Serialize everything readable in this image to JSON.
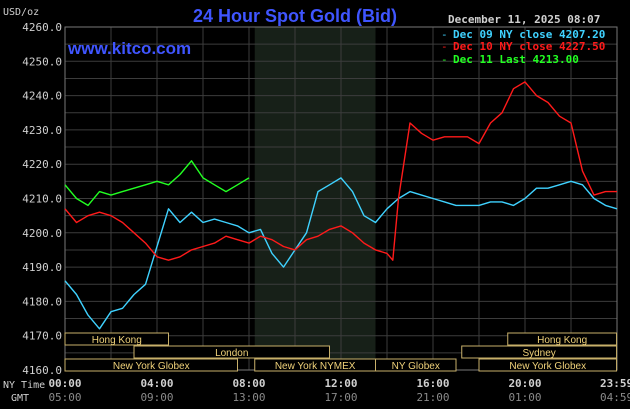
{
  "header": {
    "title": "24 Hour Spot Gold (Bid)",
    "unit": "USD/oz",
    "website": "www.kitco.com",
    "date": "December 11, 2025 08:07"
  },
  "legend": [
    {
      "label": "Dec 09 NY close 4207.20",
      "color": "#3fd2ff"
    },
    {
      "label": "Dec 10 NY close 4227.50",
      "color": "#ff1a1a"
    },
    {
      "label": "Dec 11 Last 4213.00",
      "color": "#22ff22"
    }
  ],
  "axes": {
    "nytime_label": "NY Time",
    "gmt_label": "GMT",
    "x_ticks_ny": [
      "00:00",
      "04:00",
      "08:00",
      "12:00",
      "16:00",
      "20:00",
      "23:59"
    ],
    "x_ticks_gmt": [
      "05:00",
      "09:00",
      "13:00",
      "17:00",
      "21:00",
      "01:00",
      "04:59"
    ],
    "y_ticks": [
      "4260.0",
      "4250.0",
      "4240.0",
      "4230.0",
      "4220.0",
      "4210.0",
      "4200.0",
      "4190.0",
      "4180.0",
      "4170.0",
      "4160.0"
    ]
  },
  "sessions": [
    {
      "label": "Hong Kong",
      "start": 0,
      "end": 4.5,
      "row": 0
    },
    {
      "label": "London",
      "start": 3,
      "end": 11.5,
      "row": 1
    },
    {
      "label": "New York Globex",
      "start": 0,
      "end": 7.5,
      "row": 2
    },
    {
      "label": "New York NYMEX",
      "start": 8.25,
      "end": 13.5,
      "row": 2
    },
    {
      "label": "NY Globex",
      "start": 13.5,
      "end": 17,
      "row": 2
    },
    {
      "label": "Hong Kong",
      "start": 19.25,
      "end": 23.98,
      "row": 0
    },
    {
      "label": "Sydney",
      "start": 17.25,
      "end": 23.98,
      "row": 1
    },
    {
      "label": "New York Globex",
      "start": 18,
      "end": 23.98,
      "row": 2
    }
  ],
  "colors": {
    "background": "#000000",
    "grid": "#3c3c3c",
    "axis_text": "#d0d0d0",
    "title": "#3f55ff",
    "highlight": "#172018"
  },
  "chart_data": {
    "type": "line",
    "title": "24 Hour Spot Gold (Bid)",
    "ylabel": "USD/oz",
    "ylim": [
      4160,
      4260
    ],
    "xlim": [
      0,
      24
    ],
    "x_unit": "hours (NY time)",
    "highlight_band": [
      8.25,
      13.5
    ],
    "series": [
      {
        "name": "Dec 09 NY close 4207.20",
        "color": "#3fd2ff",
        "x": [
          0,
          0.5,
          1,
          1.5,
          2,
          2.5,
          3,
          3.5,
          4,
          4.5,
          5,
          5.5,
          6,
          6.5,
          7,
          7.5,
          8,
          8.5,
          9,
          9.5,
          10,
          10.5,
          11,
          11.5,
          12,
          12.5,
          13,
          13.5,
          14,
          14.5,
          15,
          15.5,
          16,
          16.5,
          17,
          17.5,
          18,
          18.5,
          19,
          19.5,
          20,
          20.5,
          21,
          21.5,
          22,
          22.5,
          23,
          23.5,
          24
        ],
        "y": [
          4186,
          4182,
          4176,
          4172,
          4177,
          4178,
          4182,
          4185,
          4196,
          4207,
          4203,
          4206,
          4203,
          4204,
          4203,
          4202,
          4200,
          4201,
          4194,
          4190,
          4195,
          4200,
          4212,
          4214,
          4216,
          4212,
          4205,
          4203,
          4207,
          4210,
          4212,
          4211,
          4210,
          4209,
          4208,
          4208,
          4208,
          4209,
          4209,
          4208,
          4210,
          4213,
          4213,
          4214,
          4215,
          4214,
          4210,
          4208,
          4207
        ]
      },
      {
        "name": "Dec 10 NY close 4227.50",
        "color": "#ff1a1a",
        "x": [
          0,
          0.5,
          1,
          1.5,
          2,
          2.5,
          3,
          3.5,
          4,
          4.5,
          5,
          5.5,
          6,
          6.5,
          7,
          7.5,
          8,
          8.5,
          9,
          9.5,
          10,
          10.5,
          11,
          11.5,
          12,
          12.5,
          13,
          13.5,
          14,
          14.25,
          14.5,
          15,
          15.5,
          16,
          16.5,
          17,
          17.5,
          18,
          18.5,
          19,
          19.5,
          20,
          20.5,
          21,
          21.5,
          22,
          22.5,
          23,
          23.5,
          24
        ],
        "y": [
          4207,
          4203,
          4205,
          4206,
          4205,
          4203,
          4200,
          4197,
          4193,
          4192,
          4193,
          4195,
          4196,
          4197,
          4199,
          4198,
          4197,
          4199,
          4198,
          4196,
          4195,
          4198,
          4199,
          4201,
          4202,
          4200,
          4197,
          4195,
          4194,
          4192,
          4210,
          4232,
          4229,
          4227,
          4228,
          4228,
          4228,
          4226,
          4232,
          4235,
          4242,
          4244,
          4240,
          4238,
          4234,
          4232,
          4218,
          4211,
          4212,
          4212
        ]
      },
      {
        "name": "Dec 11 Last 4213.00",
        "color": "#22ff22",
        "x": [
          0,
          0.5,
          1,
          1.5,
          2,
          2.5,
          3,
          3.5,
          4,
          4.5,
          5,
          5.5,
          6,
          6.5,
          7,
          7.5,
          8
        ],
        "y": [
          4214,
          4210,
          4208,
          4212,
          4211,
          4212,
          4213,
          4214,
          4215,
          4214,
          4217,
          4221,
          4216,
          4214,
          4212,
          4214,
          4216
        ]
      }
    ]
  }
}
